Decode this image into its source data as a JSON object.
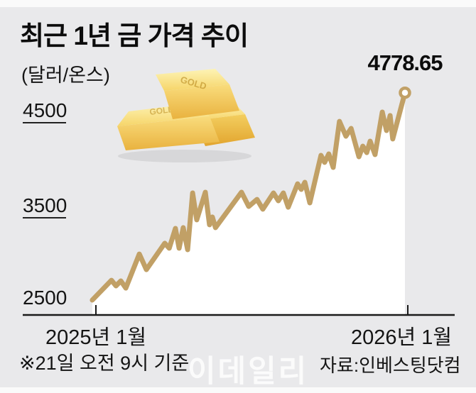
{
  "title": "최근 1년 금 가격 추이",
  "unit_label": "(달러/온스)",
  "endpoint_label": "4778.65",
  "footnote": "※21일 오전 9시 기준",
  "source": "자료:인베스팅닷컴",
  "watermark": "이데일리",
  "icons": {
    "gold_bars": "gold-bars-icon",
    "gold_bar_engraving": "GOLD"
  },
  "colors": {
    "page_bg": "#FAFAFA",
    "panel_bg": "#E9E9EB",
    "line": "#C1A066",
    "area_fill": "#FFFFFF",
    "axis": "#1A1A1A",
    "text": "#111111",
    "watermark": "rgba(255,255,255,0.8)",
    "gold_light": "#FDF3B5",
    "gold_mid": "#F6D569",
    "gold_dark": "#E9B23F"
  },
  "y_axis": {
    "ticks": [
      {
        "label": "4500",
        "value": 4500
      },
      {
        "label": "3500",
        "value": 3500
      },
      {
        "label": "2500",
        "value": 2500
      }
    ]
  },
  "x_axis": {
    "ticks": [
      {
        "label": "2025년 1월"
      },
      {
        "label": "2026년 1월"
      }
    ]
  },
  "chart_data": {
    "type": "line",
    "title": "최근 1년 금 가격 추이",
    "ylabel": "달러/온스",
    "x_unit": "months since 2025-01 (0 = 2025년 1월, 12 = 2026년 1월)",
    "xlim": [
      0,
      12
    ],
    "ylim": [
      2500,
      4900
    ],
    "x_tick_labels": [
      "2025년 1월",
      "2026년 1월"
    ],
    "y_tick_values": [
      2500,
      3500,
      4500
    ],
    "grid": false,
    "legend": false,
    "last_value": 4778.65,
    "last_value_label": "4778.65",
    "series": [
      {
        "name": "금 가격(달러/온스)",
        "points": [
          [
            -0.14,
            2653
          ],
          [
            0.6,
            2856
          ],
          [
            0.77,
            2798
          ],
          [
            0.96,
            2849
          ],
          [
            1.15,
            2776
          ],
          [
            1.67,
            3125
          ],
          [
            1.94,
            2965
          ],
          [
            2.65,
            3235
          ],
          [
            2.82,
            3184
          ],
          [
            3.06,
            3387
          ],
          [
            3.2,
            3184
          ],
          [
            3.36,
            3395
          ],
          [
            3.53,
            3169
          ],
          [
            3.72,
            3751
          ],
          [
            3.88,
            3475
          ],
          [
            4.21,
            3758
          ],
          [
            4.37,
            3424
          ],
          [
            4.48,
            3504
          ],
          [
            4.6,
            3395
          ],
          [
            5.6,
            3758
          ],
          [
            5.88,
            3613
          ],
          [
            6.2,
            3685
          ],
          [
            6.42,
            3584
          ],
          [
            6.83,
            3751
          ],
          [
            7.02,
            3671
          ],
          [
            7.21,
            3751
          ],
          [
            7.4,
            3605
          ],
          [
            7.76,
            3845
          ],
          [
            7.9,
            3787
          ],
          [
            8.04,
            3860
          ],
          [
            8.23,
            3649
          ],
          [
            8.66,
            4136
          ],
          [
            8.8,
            4064
          ],
          [
            8.96,
            4151
          ],
          [
            9.13,
            4013
          ],
          [
            9.37,
            4485
          ],
          [
            9.62,
            4333
          ],
          [
            9.82,
            4413
          ],
          [
            10.12,
            4122
          ],
          [
            10.27,
            4231
          ],
          [
            10.42,
            4165
          ],
          [
            10.55,
            4282
          ],
          [
            10.74,
            4144
          ],
          [
            11.02,
            4580
          ],
          [
            11.18,
            4391
          ],
          [
            11.32,
            4544
          ],
          [
            11.42,
            4304
          ],
          [
            11.89,
            4778.65
          ]
        ]
      }
    ]
  }
}
